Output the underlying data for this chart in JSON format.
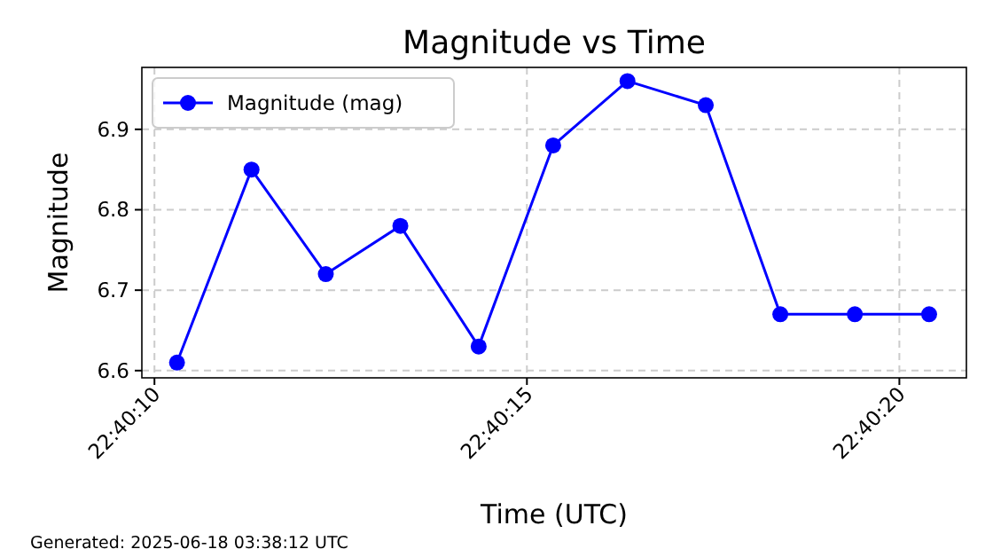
{
  "chart_data": {
    "type": "line",
    "title": "Magnitude vs Time",
    "xlabel": "Time (UTC)",
    "ylabel": "Magnitude",
    "x": [
      22.669528,
      22.669806,
      22.670083,
      22.670361,
      22.670653,
      22.670931,
      22.671208,
      22.6715,
      22.671778,
      22.672056,
      22.672333
    ],
    "series": [
      {
        "name": "Magnitude (mag)",
        "color": "#0000ff",
        "values": [
          6.61,
          6.85,
          6.72,
          6.78,
          6.63,
          6.88,
          6.96,
          6.93,
          6.67,
          6.67,
          6.67
        ]
      }
    ],
    "xlim": [
      22.669397,
      22.672472
    ],
    "xticks": [
      {
        "value": 22.669444,
        "label": "22:40:10"
      },
      {
        "value": 22.670833,
        "label": "22:40:15"
      },
      {
        "value": 22.672222,
        "label": "22:40:20"
      }
    ],
    "ylim": [
      6.591,
      6.977
    ],
    "yticks": [
      6.6,
      6.7,
      6.8,
      6.9
    ],
    "grid": true,
    "legend": "top left",
    "marker": "circle",
    "line_style": "solid",
    "annotations": [
      "Generated: 2025-06-18 03:38:12 UTC"
    ]
  }
}
